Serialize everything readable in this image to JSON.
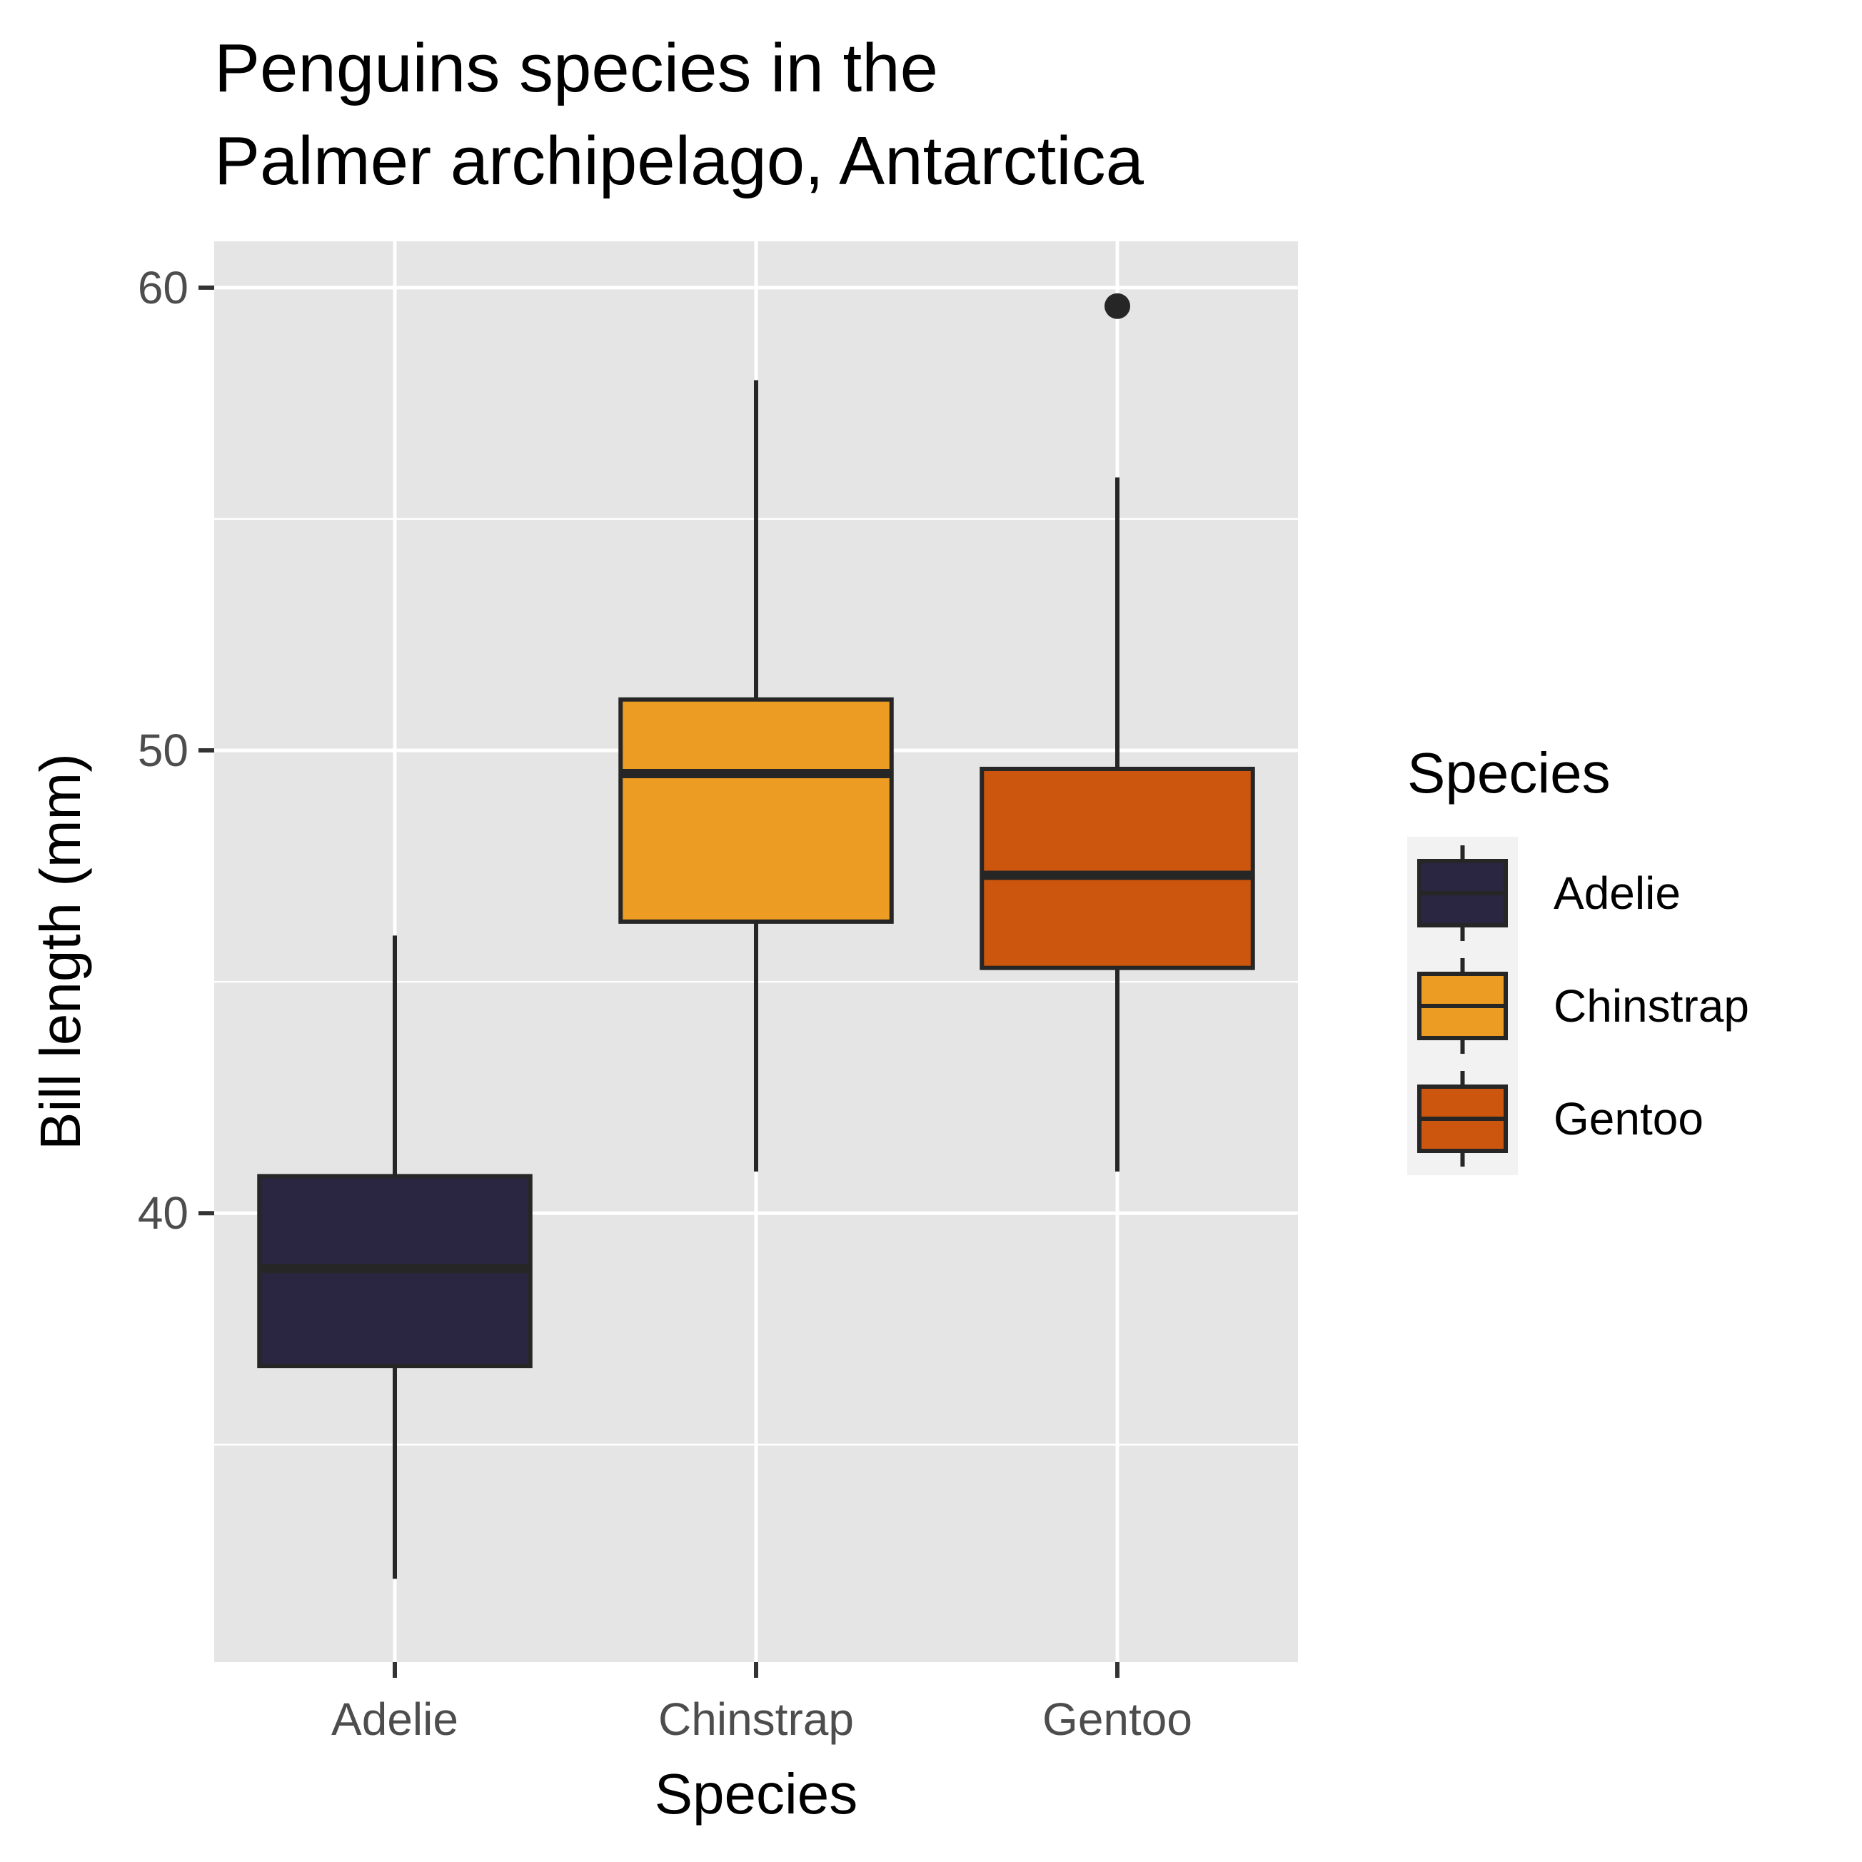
{
  "chart_data": {
    "type": "box",
    "title_lines": [
      "Penguins species in the",
      "Palmer archipelago, Antarctica"
    ],
    "xlabel": "Species",
    "ylabel": "Bill length (mm)",
    "categories": [
      "Adelie",
      "Chinstrap",
      "Gentoo"
    ],
    "ylim": [
      30.3,
      61
    ],
    "y_ticks": [
      40,
      50,
      60
    ],
    "y_minor_gridlines": [
      35,
      45,
      55
    ],
    "grid": true,
    "legend_title": "Species",
    "legend_position": "right",
    "series": [
      {
        "name": "Adelie",
        "color": "#2a2541",
        "whisker_low": 32.1,
        "q1": 36.7,
        "median": 38.8,
        "q3": 40.8,
        "whisker_high": 46.0,
        "outliers": []
      },
      {
        "name": "Chinstrap",
        "color": "#ec9c22",
        "whisker_low": 40.9,
        "q1": 46.3,
        "median": 49.5,
        "q3": 51.1,
        "whisker_high": 58.0,
        "outliers": []
      },
      {
        "name": "Gentoo",
        "color": "#cc560d",
        "whisker_low": 40.9,
        "q1": 45.3,
        "median": 47.3,
        "q3": 49.6,
        "whisker_high": 55.9,
        "outliers": [
          59.6
        ]
      }
    ],
    "colors": {
      "panel_background": "#e5e5e5",
      "gridline": "#ffffff",
      "outline": "#262626"
    }
  }
}
